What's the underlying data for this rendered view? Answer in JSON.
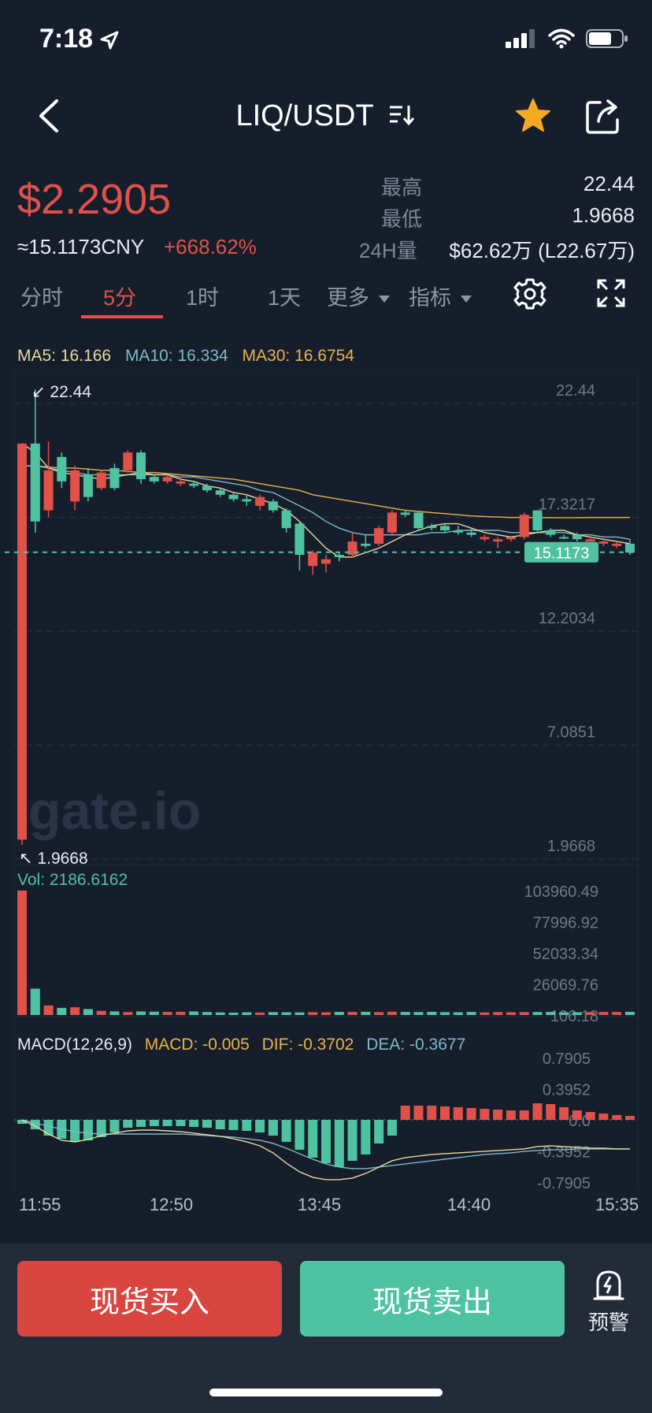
{
  "status": {
    "time": "7:18",
    "battery_level": 0.7
  },
  "nav": {
    "title": "LIQ/USDT",
    "back_icon": "back-chevron-icon",
    "star_icon": "star-icon",
    "share_icon": "share-icon",
    "star_color": "#f7a823"
  },
  "price": {
    "last": "$2.2905",
    "cny": "≈15.1173CNY",
    "change": "+668.62%"
  },
  "stats": {
    "high_label": "最高",
    "high_value": "22.44",
    "low_label": "最低",
    "low_value": "1.9668",
    "vol_label": "24H量",
    "vol_value": "$62.62万 (L22.67万)"
  },
  "tabs": {
    "items": [
      "分时",
      "5分",
      "1时",
      "1天"
    ],
    "active": "5分",
    "more": "更多",
    "indicator": "指标"
  },
  "ma": {
    "ma5": "MA5: 16.166",
    "ma10": "MA10: 16.334",
    "ma30": "MA30: 16.6754"
  },
  "volume": {
    "label": "Vol: 2186.6162"
  },
  "macd": {
    "name": "MACD(12,26,9)",
    "macd": "MACD: -0.005",
    "dif": "DIF: -0.3702",
    "dea": "DEA: -0.3677"
  },
  "time_axis": [
    "11:55",
    "12:50",
    "13:45",
    "14:40",
    "15:35"
  ],
  "colors": {
    "up": "#4fc3a1",
    "down": "#e0514a",
    "ma5": "#e8d89a",
    "ma10": "#7fb8c8",
    "ma30": "#e8b24a",
    "background": "#161e2c"
  },
  "chart_data": {
    "type": "candlestick",
    "price_axis_ticks": [
      "22.44",
      "17.3217",
      "12.2034",
      "7.0851",
      "1.9668"
    ],
    "ylim": [
      1.9668,
      22.44
    ],
    "max_marker": "22.44",
    "min_marker": "1.9668",
    "current_price_label": "15.1173",
    "current_price": 15.1173,
    "watermark": "gate.io",
    "candles": [
      {
        "o": 20.0,
        "h": 20.0,
        "l": 1.9668,
        "c": 2.2,
        "dir": "down"
      },
      {
        "o": 16.5,
        "h": 22.44,
        "l": 16.0,
        "c": 20.0,
        "dir": "up"
      },
      {
        "o": 18.8,
        "h": 20.1,
        "l": 16.7,
        "c": 17.0,
        "dir": "down"
      },
      {
        "o": 18.3,
        "h": 19.6,
        "l": 18.0,
        "c": 19.4,
        "dir": "up"
      },
      {
        "o": 18.8,
        "h": 19.0,
        "l": 17.0,
        "c": 17.4,
        "dir": "down"
      },
      {
        "o": 17.6,
        "h": 18.9,
        "l": 17.4,
        "c": 18.6,
        "dir": "up"
      },
      {
        "o": 18.7,
        "h": 18.8,
        "l": 17.9,
        "c": 18.0,
        "dir": "down"
      },
      {
        "o": 18.0,
        "h": 19.1,
        "l": 17.9,
        "c": 18.9,
        "dir": "up"
      },
      {
        "o": 19.6,
        "h": 19.7,
        "l": 18.7,
        "c": 18.8,
        "dir": "down"
      },
      {
        "o": 18.4,
        "h": 19.7,
        "l": 18.2,
        "c": 19.6,
        "dir": "up"
      },
      {
        "o": 18.5,
        "h": 18.6,
        "l": 18.2,
        "c": 18.3,
        "dir": "up"
      },
      {
        "o": 18.5,
        "h": 18.6,
        "l": 18.2,
        "c": 18.3,
        "dir": "down"
      },
      {
        "o": 18.3,
        "h": 18.5,
        "l": 18.1,
        "c": 18.2,
        "dir": "down"
      },
      {
        "o": 18.1,
        "h": 18.3,
        "l": 18.0,
        "c": 18.2,
        "dir": "up"
      },
      {
        "o": 18.1,
        "h": 18.2,
        "l": 17.8,
        "c": 17.9,
        "dir": "up"
      },
      {
        "o": 17.9,
        "h": 18.0,
        "l": 17.6,
        "c": 17.7,
        "dir": "up"
      },
      {
        "o": 17.7,
        "h": 17.8,
        "l": 17.4,
        "c": 17.5,
        "dir": "up"
      },
      {
        "o": 17.5,
        "h": 17.7,
        "l": 17.2,
        "c": 17.4,
        "dir": "up"
      },
      {
        "o": 17.2,
        "h": 17.7,
        "l": 17.0,
        "c": 17.6,
        "dir": "down"
      },
      {
        "o": 17.4,
        "h": 17.5,
        "l": 16.9,
        "c": 17.0,
        "dir": "up"
      },
      {
        "o": 17.0,
        "h": 17.1,
        "l": 16.0,
        "c": 16.2,
        "dir": "up"
      },
      {
        "o": 16.4,
        "h": 16.5,
        "l": 14.3,
        "c": 15.0,
        "dir": "up"
      },
      {
        "o": 14.5,
        "h": 15.2,
        "l": 14.1,
        "c": 15.1,
        "dir": "down"
      },
      {
        "o": 14.6,
        "h": 15.0,
        "l": 14.2,
        "c": 14.8,
        "dir": "down"
      },
      {
        "o": 15.0,
        "h": 15.1,
        "l": 14.7,
        "c": 14.9,
        "dir": "up"
      },
      {
        "o": 15.0,
        "h": 16.0,
        "l": 14.9,
        "c": 15.6,
        "dir": "down"
      },
      {
        "o": 15.5,
        "h": 15.9,
        "l": 15.3,
        "c": 15.4,
        "dir": "up"
      },
      {
        "o": 15.5,
        "h": 16.3,
        "l": 15.4,
        "c": 16.2,
        "dir": "down"
      },
      {
        "o": 16.0,
        "h": 17.0,
        "l": 15.9,
        "c": 16.9,
        "dir": "down"
      },
      {
        "o": 16.9,
        "h": 17.0,
        "l": 16.7,
        "c": 16.8,
        "dir": "up"
      },
      {
        "o": 16.9,
        "h": 16.9,
        "l": 16.1,
        "c": 16.2,
        "dir": "up"
      },
      {
        "o": 16.2,
        "h": 16.4,
        "l": 16.1,
        "c": 16.3,
        "dir": "up"
      },
      {
        "o": 16.3,
        "h": 16.4,
        "l": 16.0,
        "c": 16.1,
        "dir": "up"
      },
      {
        "o": 16.1,
        "h": 16.3,
        "l": 15.9,
        "c": 16.0,
        "dir": "up"
      },
      {
        "o": 16.0,
        "h": 16.2,
        "l": 15.8,
        "c": 15.9,
        "dir": "up"
      },
      {
        "o": 15.7,
        "h": 15.9,
        "l": 15.6,
        "c": 15.8,
        "dir": "down"
      },
      {
        "o": 15.6,
        "h": 15.8,
        "l": 15.3,
        "c": 15.7,
        "dir": "down"
      },
      {
        "o": 15.7,
        "h": 15.8,
        "l": 15.6,
        "c": 15.8,
        "dir": "down"
      },
      {
        "o": 15.8,
        "h": 16.9,
        "l": 15.7,
        "c": 16.8,
        "dir": "down"
      },
      {
        "o": 17.0,
        "h": 17.0,
        "l": 16.0,
        "c": 16.1,
        "dir": "up"
      },
      {
        "o": 16.1,
        "h": 16.2,
        "l": 15.8,
        "c": 15.9,
        "dir": "up"
      },
      {
        "o": 15.8,
        "h": 15.9,
        "l": 15.7,
        "c": 15.8,
        "dir": "up"
      },
      {
        "o": 15.9,
        "h": 16.0,
        "l": 15.6,
        "c": 15.7,
        "dir": "up"
      },
      {
        "o": 15.7,
        "h": 15.8,
        "l": 15.6,
        "c": 15.6,
        "dir": "down"
      },
      {
        "o": 15.5,
        "h": 15.7,
        "l": 15.4,
        "c": 15.6,
        "dir": "down"
      },
      {
        "o": 15.5,
        "h": 15.6,
        "l": 15.3,
        "c": 15.4,
        "dir": "down"
      },
      {
        "o": 15.5,
        "h": 15.7,
        "l": 15.0,
        "c": 15.1,
        "dir": "up"
      }
    ],
    "volume": {
      "axis_ticks": [
        "103960.49",
        "77996.92",
        "52033.34",
        "26069.76",
        "106.18"
      ],
      "values": [
        103960,
        22000,
        8000,
        6000,
        6500,
        5000,
        3500,
        3000,
        2500,
        3000,
        2800,
        2600,
        2700,
        3000,
        2500,
        2200,
        2000,
        2300,
        2100,
        2400,
        2300,
        2200,
        2400,
        2300,
        2600,
        2500,
        2700,
        2400,
        2800,
        2600,
        2500,
        2700,
        2400,
        2300,
        2600,
        2200,
        2500,
        2300,
        2400,
        2500,
        2600,
        2200,
        2300,
        2400,
        2600,
        2500,
        2700
      ],
      "last": 2186.6162
    },
    "macd": {
      "axis_ticks": [
        "0.7905",
        "0.3952",
        "0.0",
        "-0.3952",
        "-0.7905"
      ],
      "ylim": [
        -0.7905,
        0.7905
      ],
      "hist": [
        -0.05,
        -0.12,
        -0.2,
        -0.24,
        -0.28,
        -0.26,
        -0.22,
        -0.16,
        -0.1,
        -0.09,
        -0.08,
        -0.08,
        -0.08,
        -0.09,
        -0.1,
        -0.12,
        -0.13,
        -0.14,
        -0.16,
        -0.2,
        -0.28,
        -0.38,
        -0.48,
        -0.55,
        -0.6,
        -0.52,
        -0.44,
        -0.3,
        -0.2,
        0.18,
        0.18,
        0.18,
        0.17,
        0.16,
        0.15,
        0.14,
        0.13,
        0.12,
        0.12,
        0.21,
        0.2,
        0.16,
        0.12,
        0.1,
        0.08,
        0.06,
        0.05
      ],
      "dif": [
        0.0,
        -0.08,
        -0.18,
        -0.26,
        -0.28,
        -0.25,
        -0.2,
        -0.17,
        -0.14,
        -0.13,
        -0.13,
        -0.14,
        -0.15,
        -0.17,
        -0.19,
        -0.21,
        -0.24,
        -0.28,
        -0.33,
        -0.42,
        -0.55,
        -0.66,
        -0.73,
        -0.76,
        -0.76,
        -0.74,
        -0.68,
        -0.6,
        -0.52,
        -0.48,
        -0.46,
        -0.44,
        -0.43,
        -0.42,
        -0.41,
        -0.4,
        -0.39,
        -0.38,
        -0.37,
        -0.34,
        -0.33,
        -0.34,
        -0.35,
        -0.36,
        -0.36,
        -0.37,
        -0.37
      ],
      "dea": [
        0.0,
        -0.04,
        -0.08,
        -0.12,
        -0.15,
        -0.17,
        -0.18,
        -0.18,
        -0.18,
        -0.18,
        -0.18,
        -0.18,
        -0.18,
        -0.19,
        -0.2,
        -0.21,
        -0.22,
        -0.24,
        -0.26,
        -0.3,
        -0.36,
        -0.43,
        -0.5,
        -0.56,
        -0.6,
        -0.62,
        -0.62,
        -0.6,
        -0.58,
        -0.56,
        -0.54,
        -0.52,
        -0.5,
        -0.48,
        -0.46,
        -0.44,
        -0.43,
        -0.42,
        -0.4,
        -0.39,
        -0.38,
        -0.38,
        -0.37,
        -0.37,
        -0.37,
        -0.37,
        -0.37
      ]
    },
    "ma5": [
      20.0,
      19.6,
      18.9,
      18.7,
      18.6,
      18.5,
      18.4,
      18.5,
      18.6,
      18.7,
      18.6,
      18.6,
      18.4,
      18.3,
      18.1,
      18.0,
      17.8,
      17.7,
      17.5,
      17.3,
      17.0,
      16.5,
      15.9,
      15.3,
      14.9,
      14.9,
      15.1,
      15.3,
      15.6,
      15.9,
      16.1,
      16.3,
      16.4,
      16.4,
      16.2,
      16.0,
      15.9,
      15.8,
      15.9,
      16.0,
      16.1,
      16.1,
      15.9,
      15.8,
      15.7,
      15.6,
      15.5
    ],
    "ma10": [
      19.0,
      19.0,
      18.9,
      18.8,
      18.7,
      18.6,
      18.6,
      18.6,
      18.6,
      18.6,
      18.6,
      18.6,
      18.5,
      18.5,
      18.4,
      18.3,
      18.2,
      18.1,
      17.9,
      17.8,
      17.5,
      17.2,
      16.9,
      16.5,
      16.2,
      16.0,
      15.9,
      15.9,
      15.9,
      15.9,
      15.9,
      16.0,
      16.0,
      16.1,
      16.1,
      16.1,
      16.1,
      16.0,
      16.0,
      16.0,
      16.0,
      16.0,
      15.9,
      15.9,
      15.8,
      15.8,
      15.7
    ],
    "ma30": [
      19.0,
      19.0,
      18.95,
      18.9,
      18.9,
      18.85,
      18.8,
      18.8,
      18.75,
      18.7,
      18.7,
      18.65,
      18.6,
      18.55,
      18.5,
      18.45,
      18.4,
      18.3,
      18.2,
      18.1,
      18.0,
      17.9,
      17.7,
      17.6,
      17.5,
      17.4,
      17.3,
      17.2,
      17.1,
      17.0,
      16.95,
      16.9,
      16.85,
      16.8,
      16.75,
      16.72,
      16.7,
      16.68,
      16.68,
      16.68,
      16.67,
      16.67,
      16.67,
      16.68,
      16.68,
      16.68,
      16.68
    ]
  },
  "bottom": {
    "buy": "现货买入",
    "sell": "现货卖出",
    "alert": "预警"
  }
}
